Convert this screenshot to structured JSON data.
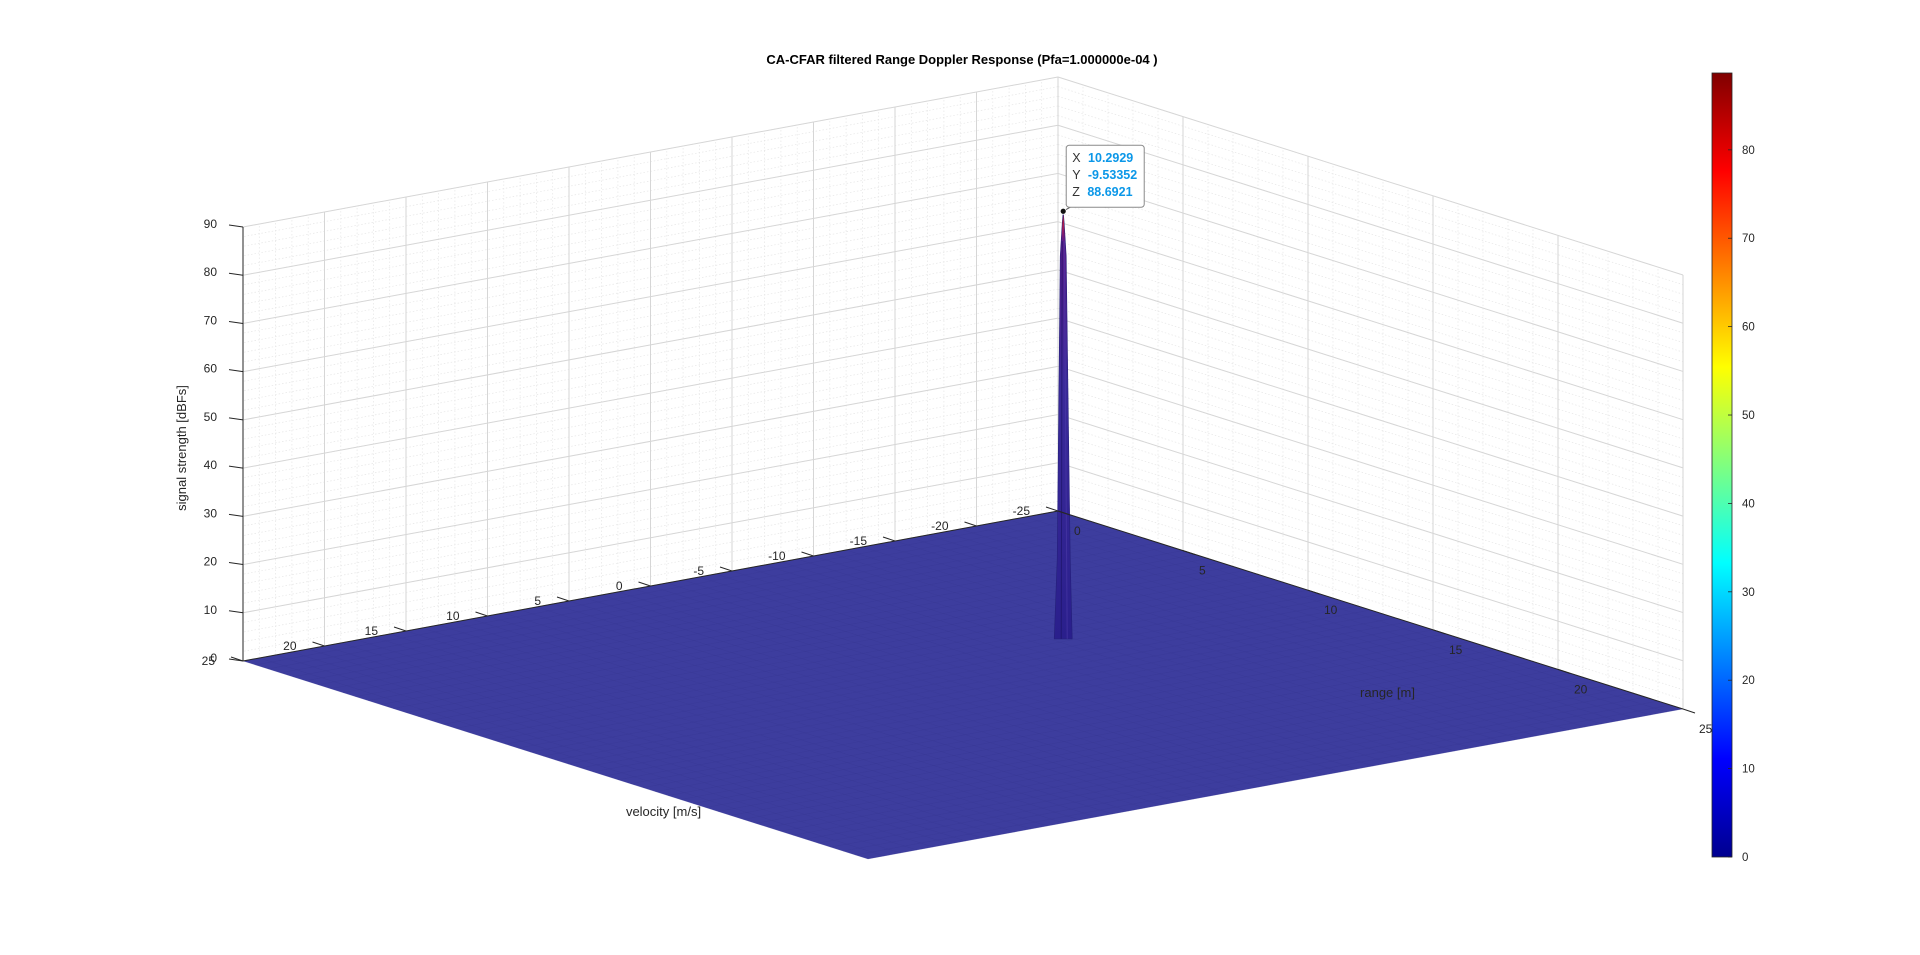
{
  "chart_data": {
    "type": "surface3d",
    "title": "CA-CFAR filtered Range Doppler Response (Pfa=1.000000e-04 )",
    "xlabel": "range [m]",
    "ylabel": "velocity [m/s]",
    "zlabel": "signal strength [dBFs]",
    "x_ticks": [
      "0",
      "5",
      "10",
      "15",
      "20",
      "25"
    ],
    "y_ticks": [
      "-25",
      "-20",
      "-15",
      "-10",
      "-5",
      "0",
      "5",
      "10",
      "15",
      "20",
      "25"
    ],
    "z_ticks": [
      "0",
      "10",
      "20",
      "30",
      "40",
      "50",
      "60",
      "70",
      "80",
      "90"
    ],
    "xlim": [
      0,
      25
    ],
    "ylim": [
      -25,
      25
    ],
    "zlim": [
      0,
      90
    ],
    "grid": true,
    "colormap": "jet",
    "colorbar": {
      "ticks": [
        "0",
        "10",
        "20",
        "30",
        "40",
        "50",
        "60",
        "70",
        "80"
      ],
      "clim": [
        0,
        88.6921
      ]
    },
    "baseline_value": 0,
    "peak": {
      "x": 10.2929,
      "y": -9.53352,
      "z": 88.6921
    },
    "datatip": {
      "x_label": "X",
      "x_value": "10.2929",
      "y_label": "Y",
      "y_value": "-9.53352",
      "z_label": "Z",
      "z_value": "88.6921"
    },
    "colors": {
      "floor": "#3d3d9e",
      "tip_value": "#0b97e8",
      "grid": "#d9d9d9",
      "axis_text": "#262626"
    }
  }
}
